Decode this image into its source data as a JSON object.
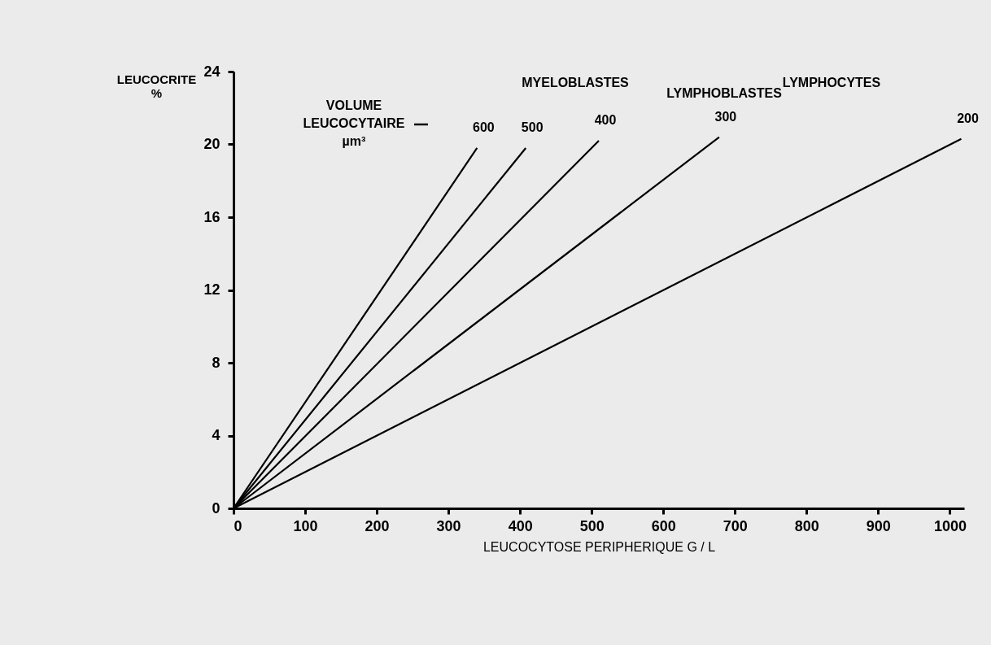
{
  "chart_data": {
    "type": "line",
    "xlabel": "LEUCOCYTOSE  PERIPHERIQUE   G / L",
    "ylabel": "LEUCOCRITE\n%",
    "xlim": [
      0,
      1020
    ],
    "ylim": [
      0,
      24
    ],
    "xticks": [
      0,
      100,
      200,
      300,
      400,
      500,
      600,
      700,
      800,
      900,
      {
        "value": 1000,
        "label": "1000"
      }
    ],
    "yticks": [
      0,
      4,
      8,
      12,
      16,
      20,
      24
    ],
    "grid": false,
    "legend": false,
    "marker": "none",
    "line_style": "solid",
    "series": [
      {
        "name": "600",
        "color": "#000000",
        "x": [
          0,
          340
        ],
        "values": [
          0,
          19.8
        ]
      },
      {
        "name": "500",
        "color": "#000000",
        "x": [
          0,
          408
        ],
        "values": [
          0,
          19.8
        ]
      },
      {
        "name": "400",
        "color": "#000000",
        "x": [
          0,
          510
        ],
        "values": [
          0,
          20.2
        ]
      },
      {
        "name": "300",
        "color": "#000000",
        "x": [
          0,
          678
        ],
        "values": [
          0,
          20.4
        ]
      },
      {
        "name": "200",
        "color": "#000000",
        "x": [
          0,
          1016
        ],
        "values": [
          0,
          20.3
        ]
      }
    ],
    "annotations": [
      "VOLUME\nLEUCOCYTAIRE\nµm³",
      "MYELOBLASTES",
      "LYMPHOBLASTES",
      "LYMPHOCYTES"
    ]
  }
}
